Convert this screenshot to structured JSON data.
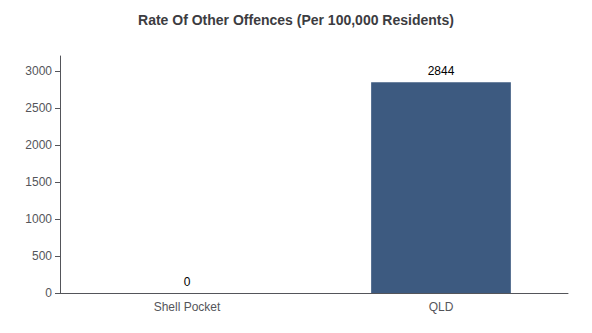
{
  "chart_data": {
    "type": "bar",
    "title": "Rate Of Other Offences (Per 100,000 Residents)",
    "categories": [
      "Shell Pocket",
      "QLD"
    ],
    "values": [
      0,
      2844
    ],
    "color": "#3d5a80",
    "ylim": [
      0,
      3200
    ],
    "yticks": [
      0,
      500,
      1000,
      1500,
      2000,
      2500,
      3000
    ],
    "grid": false,
    "data_labels": true
  }
}
